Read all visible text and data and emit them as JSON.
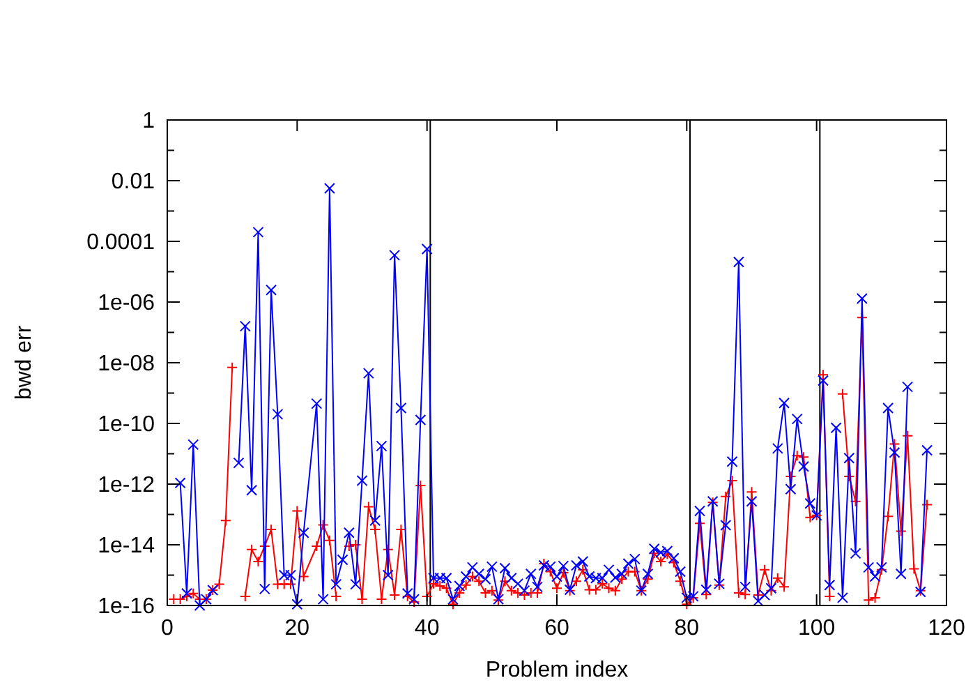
{
  "chart_data": {
    "type": "line",
    "xlabel": "Problem index",
    "ylabel": "bwd err",
    "log": "y",
    "grid": false,
    "xlim": [
      0,
      120
    ],
    "xticks": [
      0,
      20,
      40,
      60,
      80,
      100,
      120
    ],
    "ylim": [
      1e-16,
      1
    ],
    "yticks": [
      1,
      {
        "value": 0.1,
        "label": null
      },
      0.01,
      {
        "value": 0.001,
        "label": null
      },
      0.0001,
      {
        "value": 1e-05,
        "label": null
      },
      {
        "value": 1e-06,
        "label": "1e-06"
      },
      {
        "value": 1e-07,
        "label": null
      },
      {
        "value": 1e-08,
        "label": "1e-08"
      },
      {
        "value": 1e-09,
        "label": null
      },
      {
        "value": 1e-10,
        "label": "1e-10"
      },
      {
        "value": 1e-11,
        "label": null
      },
      {
        "value": 1e-12,
        "label": "1e-12"
      },
      {
        "value": 1e-13,
        "label": null
      },
      {
        "value": 1e-14,
        "label": "1e-14"
      },
      {
        "value": 1e-15,
        "label": null
      },
      {
        "value": 1e-16,
        "label": "1e-16"
      }
    ],
    "ref_lines": [
      {
        "axis": "x",
        "value": 40.5,
        "color": "#000000"
      },
      {
        "axis": "x",
        "value": 80.5,
        "color": "#000000"
      },
      {
        "axis": "x",
        "value": 100.5,
        "color": "#000000"
      }
    ],
    "x": [
      1,
      2,
      3,
      4,
      5,
      6,
      7,
      8,
      9,
      10,
      11,
      12,
      13,
      14,
      15,
      16,
      17,
      18,
      19,
      20,
      21,
      23,
      24,
      25,
      26,
      27,
      28,
      29,
      30,
      31,
      32,
      33,
      34,
      35,
      36,
      37,
      38,
      39,
      40,
      41,
      42,
      43,
      44,
      45,
      46,
      47,
      48,
      49,
      50,
      51,
      52,
      53,
      54,
      55,
      56,
      57,
      58,
      59,
      60,
      61,
      62,
      63,
      64,
      65,
      66,
      67,
      68,
      69,
      70,
      71,
      72,
      73,
      74,
      75,
      76,
      77,
      78,
      79,
      80,
      81,
      82,
      83,
      84,
      85,
      86,
      87,
      88,
      89,
      90,
      91,
      92,
      93,
      94,
      95,
      96,
      97,
      98,
      99,
      100,
      101,
      102,
      103,
      104,
      105,
      106,
      107,
      108,
      109,
      110,
      111,
      112,
      113,
      114,
      115,
      116,
      117
    ],
    "series": [
      {
        "color": "#ff0000",
        "marker": "plus",
        "values": [
          1.6e-16,
          1.6e-16,
          2e-16,
          2.5e-16,
          1.6e-16,
          1.6e-16,
          3.2e-16,
          5e-16,
          6.3e-14,
          7e-09,
          null,
          2e-16,
          7e-15,
          2.8e-15,
          9e-15,
          3.2e-14,
          5e-16,
          5e-16,
          5e-16,
          1.3e-13,
          9e-16,
          9e-15,
          4.5e-14,
          1.4e-14,
          2e-16,
          null,
          9e-15,
          1e-14,
          1.6e-16,
          1.8e-13,
          3.2e-14,
          1.6e-16,
          7e-15,
          2.2e-16,
          3.2e-14,
          2e-16,
          1.3e-16,
          9e-13,
          2e-16,
          5.2e-16,
          4.4e-16,
          3.7e-16,
          1.1e-16,
          2.6e-16,
          4.7e-16,
          9e-16,
          6.3e-16,
          2.6e-16,
          3.1e-16,
          1.5e-16,
          6.3e-16,
          3.1e-16,
          2.6e-16,
          2.2e-16,
          2.6e-16,
          2.6e-16,
          2.4e-15,
          1.3e-15,
          3.7e-16,
          1.2e-15,
          3.1e-16,
          6.3e-16,
          1.5e-15,
          3.3e-16,
          3.3e-16,
          5.2e-16,
          3.7e-16,
          3.1e-16,
          7.4e-16,
          1.3e-15,
          1.3e-15,
          3.1e-16,
          7.4e-16,
          5.2e-15,
          2.8e-15,
          4.9e-15,
          2.6e-15,
          6.3e-16,
          1.1e-16,
          1.8e-16,
          5.1e-14,
          2.3e-16,
          2.5e-13,
          4.7e-16,
          3.9e-13,
          1.3e-12,
          2.6e-16,
          2.3e-16,
          5.5e-13,
          2.2e-16,
          1.5e-15,
          3.1e-16,
          8e-16,
          4.1e-16,
          1.8e-12,
          8.7e-12,
          7.8e-12,
          8e-14,
          9.3e-14,
          4e-09,
          2e-16,
          null,
          9.3e-10,
          1.8e-12,
          2.7e-13,
          3.1e-07,
          1.5e-16,
          1.8e-16,
          1.5e-15,
          8.7e-14,
          2.1e-11,
          2.8e-14,
          3.9e-11,
          1.6e-15,
          3.1e-16,
          2.1e-13
        ]
      },
      {
        "color": "#0000ff",
        "marker": "cross",
        "values": [
          null,
          1.1e-12,
          2.5e-16,
          2e-11,
          1e-16,
          1.6e-16,
          3.2e-16,
          null,
          null,
          null,
          5e-12,
          1.6e-07,
          6.3e-13,
          0.0002,
          3.5e-16,
          2.5e-06,
          2e-10,
          1e-15,
          1e-15,
          1.1e-16,
          2.5e-14,
          4.5e-10,
          1.6e-16,
          0.0056,
          5e-16,
          3.2e-15,
          2.5e-14,
          5e-16,
          1.3e-12,
          4.5e-09,
          6.3e-14,
          1.8e-11,
          1e-15,
          3.5e-05,
          3.2e-10,
          2.5e-16,
          1.6e-16,
          1.3e-10,
          5.6e-05,
          8e-16,
          8e-16,
          8e-16,
          1.6e-16,
          4.4e-16,
          9e-16,
          1.8e-15,
          1.1e-15,
          7.4e-16,
          1.9e-15,
          1.6e-16,
          1.7e-15,
          8e-16,
          5.2e-16,
          3.1e-16,
          1.1e-15,
          4.1e-16,
          2.1e-15,
          1.9e-15,
          9e-16,
          2e-15,
          3.3e-16,
          2.1e-15,
          2.8e-15,
          9e-16,
          8e-16,
          8e-16,
          1.5e-15,
          8.3e-16,
          1.1e-15,
          2.4e-15,
          3.4e-15,
          3.1e-16,
          1.1e-15,
          7.4e-15,
          5.6e-15,
          6.2e-15,
          3.6e-15,
          1.3e-15,
          1.8e-16,
          2e-16,
          1.3e-13,
          3.3e-16,
          2.7e-13,
          5.2e-16,
          4.4e-14,
          5.5e-12,
          2.1e-05,
          4.1e-16,
          2.7e-13,
          1.4e-16,
          2.2e-16,
          3.7e-16,
          1.5e-11,
          4.7e-10,
          6.8e-13,
          1.4e-10,
          3.8e-12,
          2.3e-13,
          9.3e-14,
          2.6e-09,
          4.7e-16,
          7.2e-11,
          1.8e-16,
          7.2e-12,
          5.2e-15,
          1.3e-06,
          1.8e-15,
          9e-16,
          1.8e-15,
          3.2e-10,
          1.1e-11,
          1.1e-15,
          1.6e-09,
          null,
          2.8e-16,
          1.3e-11
        ]
      }
    ]
  }
}
